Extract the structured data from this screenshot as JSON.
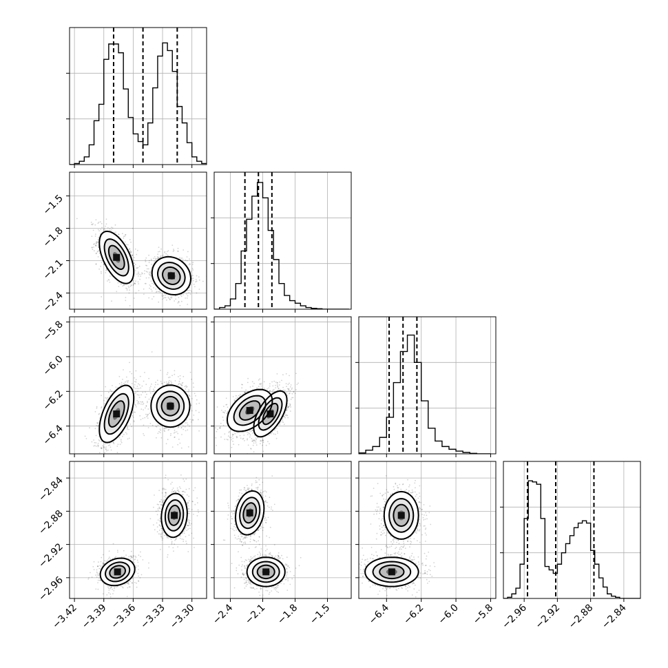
{
  "chart_data": {
    "type": "corner",
    "grid": true,
    "parameters": [
      {
        "range": [
          -3.425,
          -3.285
        ],
        "ticks": [
          -3.42,
          -3.39,
          -3.36,
          -3.33,
          -3.3
        ],
        "tick_labels": [
          "−3.42",
          "−3.39",
          "−3.36",
          "−3.33",
          "−3.30"
        ],
        "quantiles": [
          -3.38,
          -3.35,
          -3.315
        ]
      },
      {
        "range": [
          -2.55,
          -1.28
        ],
        "ticks": [
          -2.4,
          -2.1,
          -1.8,
          -1.5
        ],
        "tick_labels": [
          "−2.4",
          "−2.1",
          "−1.8",
          "−1.5"
        ],
        "quantiles": [
          -2.265,
          -2.14,
          -2.015
        ]
      },
      {
        "range": [
          -6.56,
          -5.77
        ],
        "ticks": [
          -6.4,
          -6.2,
          -6.0,
          -5.8
        ],
        "tick_labels": [
          "−6.4",
          "−6.2",
          "−6.0",
          "−5.8"
        ],
        "quantiles": [
          -6.385,
          -6.305,
          -6.225
        ]
      },
      {
        "range": [
          -2.985,
          -2.82
        ],
        "ticks": [
          -2.96,
          -2.92,
          -2.88,
          -2.84
        ],
        "tick_labels": [
          "−2.96",
          "−2.92",
          "−2.88",
          "−2.84"
        ],
        "quantiles": [
          -2.956,
          -2.922,
          -2.876
        ]
      }
    ],
    "histograms": [
      {
        "bins": [
          -3.425,
          -3.42,
          -3.415,
          -3.41,
          -3.405,
          -3.4,
          -3.395,
          -3.39,
          -3.385,
          -3.38,
          -3.375,
          -3.37,
          -3.365,
          -3.36,
          -3.355,
          -3.35,
          -3.345,
          -3.34,
          -3.335,
          -3.33,
          -3.325,
          -3.32,
          -3.315,
          -3.31,
          -3.305,
          -3.3,
          -3.295,
          -3.29,
          -3.285
        ],
        "counts": [
          0,
          1,
          3,
          7,
          18,
          40,
          55,
          96,
          110,
          110,
          102,
          69,
          43,
          28,
          21,
          18,
          38,
          70,
          99,
          111,
          104,
          85,
          53,
          38,
          20,
          7,
          3,
          1
        ],
        "ymax": 125
      },
      {
        "bins": [
          -2.55,
          -2.5,
          -2.45,
          -2.4,
          -2.35,
          -2.3,
          -2.25,
          -2.2,
          -2.15,
          -2.1,
          -2.05,
          -2.0,
          -1.95,
          -1.9,
          -1.85,
          -1.8,
          -1.75,
          -1.7,
          -1.65,
          -1.6,
          -1.55,
          -1.5,
          -1.45,
          -1.4,
          -1.35,
          -1.3
        ],
        "counts": [
          0,
          2,
          4,
          12,
          30,
          68,
          105,
          132,
          148,
          130,
          92,
          58,
          30,
          16,
          10,
          7,
          4,
          2,
          1,
          0.5,
          0,
          0,
          0,
          0,
          0
        ],
        "ymax": 160
      },
      {
        "bins": [
          -6.56,
          -6.52,
          -6.48,
          -6.44,
          -6.4,
          -6.36,
          -6.32,
          -6.28,
          -6.24,
          -6.2,
          -6.16,
          -6.12,
          -6.08,
          -6.04,
          -6.0,
          -5.96,
          -5.92,
          -5.88,
          -5.84,
          -5.8
        ],
        "counts": [
          1,
          4,
          8,
          18,
          40,
          78,
          112,
          130,
          100,
          58,
          28,
          14,
          8,
          5,
          3,
          1.5,
          0.5,
          0,
          0
        ],
        "ymax": 150
      },
      {
        "bins": [
          -2.985,
          -2.98,
          -2.975,
          -2.97,
          -2.965,
          -2.96,
          -2.955,
          -2.95,
          -2.945,
          -2.94,
          -2.935,
          -2.93,
          -2.925,
          -2.92,
          -2.915,
          -2.91,
          -2.905,
          -2.9,
          -2.895,
          -2.89,
          -2.885,
          -2.88,
          -2.875,
          -2.87,
          -2.865,
          -2.86,
          -2.855,
          -2.85,
          -2.845,
          -2.84,
          -2.835,
          -2.82
        ],
        "counts": [
          0,
          1,
          4,
          9,
          30,
          70,
          103,
          102,
          100,
          70,
          28,
          25,
          22,
          30,
          40,
          48,
          55,
          62,
          66,
          68,
          66,
          42,
          30,
          18,
          10,
          4,
          2,
          1,
          0,
          0,
          0
        ],
        "ymax": 120
      }
    ],
    "modes": [
      [
        {
          "center": [
            -3.377,
            -2.07
          ],
          "sd": [
            0.008,
            0.11
          ],
          "rho": -0.55
        },
        {
          "center": [
            -3.321,
            -2.24
          ],
          "sd": [
            0.009,
            0.08
          ],
          "rho": -0.15
        }
      ],
      [
        {
          "center": [
            -3.377,
            -6.33
          ],
          "sd": [
            0.008,
            0.075
          ],
          "rho": 0.55
        },
        {
          "center": [
            -3.322,
            -6.285
          ],
          "sd": [
            0.009,
            0.055
          ],
          "rho": 0.0
        }
      ],
      [
        {
          "center": [
            -2.22,
            -6.31
          ],
          "sd": [
            0.095,
            0.055
          ],
          "rho": 0.45
        },
        {
          "center": [
            -2.03,
            -6.33
          ],
          "sd": [
            0.07,
            0.06
          ],
          "rho": 0.6
        }
      ],
      [
        {
          "center": [
            -3.376,
            -2.953
          ],
          "sd": [
            0.008,
            0.0075
          ],
          "rho": 0.2
        },
        {
          "center": [
            -3.318,
            -2.885
          ],
          "sd": [
            0.006,
            0.012
          ],
          "rho": 0.1
        }
      ],
      [
        {
          "center": [
            -2.22,
            -2.882
          ],
          "sd": [
            0.06,
            0.012
          ],
          "rho": 0.2
        },
        {
          "center": [
            -2.07,
            -2.953
          ],
          "sd": [
            0.08,
            0.008
          ],
          "rho": 0.0
        }
      ],
      [
        {
          "center": [
            -6.315,
            -2.885
          ],
          "sd": [
            0.045,
            0.013
          ],
          "rho": 0.0
        },
        {
          "center": [
            -6.37,
            -2.953
          ],
          "sd": [
            0.07,
            0.008
          ],
          "rho": 0.0
        }
      ]
    ]
  }
}
